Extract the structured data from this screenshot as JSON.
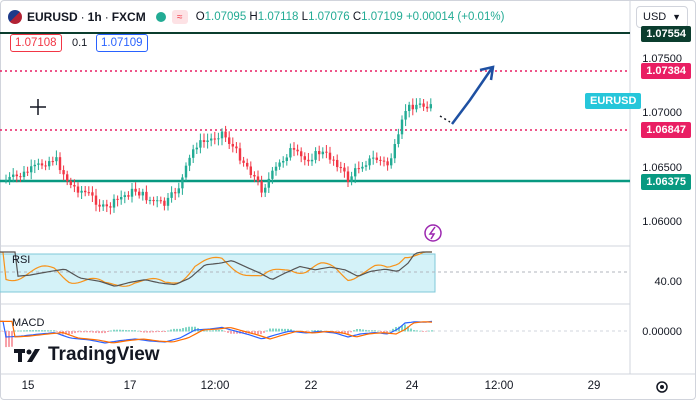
{
  "symbol": {
    "name": "EURUSD",
    "interval": "1h",
    "exchange": "FXCM",
    "title_sep": "·"
  },
  "ohlc": {
    "o_label": "O",
    "o": "1.07095",
    "h_label": "H",
    "h": "1.07118",
    "l_label": "L",
    "l": "1.07076",
    "c_label": "C",
    "c": "1.07109",
    "change": "+0.00014 (+0.01%)"
  },
  "trade": {
    "sell": "1.07108",
    "spread": "0.1",
    "buy": "1.07109"
  },
  "currency_selector": {
    "value": "USD"
  },
  "price_axis": {
    "ticks": [
      "1.07500",
      "1.07000",
      "1.06500",
      "1.06000"
    ],
    "labels": {
      "top_line": "1.07554",
      "red_upper": "1.07384",
      "red_lower": "1.06847",
      "green": "1.06375",
      "symbol": "EURUSD"
    }
  },
  "rsi": {
    "label": "RSI",
    "tick": "40.00"
  },
  "macd": {
    "label": "MACD",
    "tick": "0.00000"
  },
  "time_axis": {
    "labels": [
      "15",
      "17",
      "12:00",
      "22",
      "24",
      "12:00",
      "29"
    ]
  },
  "logo": {
    "text": "TradingView"
  },
  "colors": {
    "up": "#22ab94",
    "down": "#f23645",
    "support": "#089981",
    "resistance": "#e91e63",
    "arrow": "#1e50a2",
    "rsi": "#f7931a"
  }
}
